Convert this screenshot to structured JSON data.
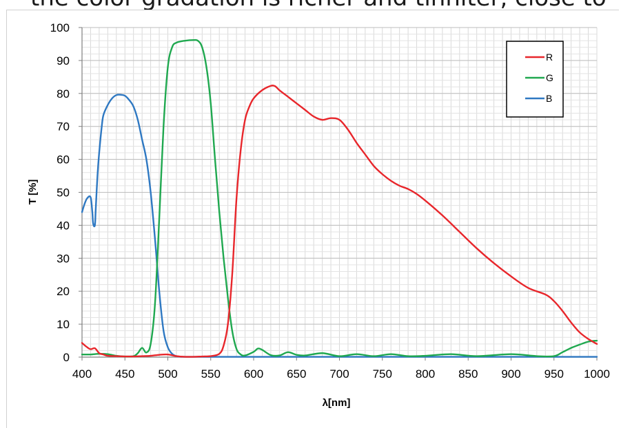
{
  "caption": "the color gradation is richer and tinniter, close to",
  "chart_data": {
    "type": "line",
    "title": "",
    "xlabel": "λ[nm]",
    "ylabel": "T [%]",
    "xlim": [
      400,
      1000
    ],
    "ylim": [
      0,
      100
    ],
    "x_ticks": [
      400,
      450,
      500,
      550,
      600,
      650,
      700,
      750,
      800,
      850,
      900,
      950,
      1000
    ],
    "y_ticks": [
      0,
      10,
      20,
      30,
      40,
      50,
      60,
      70,
      80,
      90,
      100
    ],
    "grid": true,
    "legend_position": "top-right",
    "series": [
      {
        "name": "R",
        "color": "#e8262b",
        "x": [
          400,
          405,
          410,
          415,
          420,
          425,
          430,
          440,
          450,
          460,
          470,
          480,
          490,
          500,
          510,
          520,
          530,
          540,
          550,
          560,
          565,
          570,
          575,
          580,
          585,
          590,
          595,
          600,
          610,
          620,
          625,
          630,
          640,
          650,
          660,
          670,
          680,
          690,
          700,
          710,
          720,
          730,
          740,
          750,
          760,
          770,
          780,
          790,
          800,
          820,
          840,
          860,
          880,
          900,
          920,
          940,
          950,
          960,
          970,
          980,
          990,
          1000
        ],
        "values": [
          4.3,
          3.2,
          2.4,
          2.7,
          1.2,
          0.8,
          0.4,
          0.3,
          0.2,
          0.2,
          0.3,
          0.4,
          0.7,
          0.8,
          0.3,
          0.1,
          0.1,
          0.2,
          0.3,
          1.0,
          3.5,
          10,
          25,
          48,
          63,
          72,
          76,
          78.5,
          81,
          82.3,
          82.2,
          81,
          79,
          77,
          75,
          73,
          72,
          72.5,
          72,
          69,
          65,
          61.5,
          58,
          55.5,
          53.5,
          52,
          51,
          49.5,
          47.5,
          43,
          38,
          33,
          28.5,
          24.5,
          21,
          19,
          17,
          14,
          10.5,
          7.5,
          5.5,
          4.0
        ]
      },
      {
        "name": "G",
        "color": "#1fa84f",
        "x": [
          400,
          410,
          420,
          430,
          440,
          450,
          460,
          465,
          470,
          475,
          480,
          485,
          490,
          495,
          500,
          505,
          510,
          520,
          530,
          535,
          540,
          545,
          550,
          555,
          560,
          565,
          570,
          575,
          580,
          585,
          590,
          600,
          605,
          610,
          620,
          630,
          640,
          650,
          660,
          680,
          700,
          720,
          740,
          760,
          780,
          800,
          830,
          860,
          900,
          930,
          950,
          960,
          970,
          980,
          990,
          1000
        ],
        "values": [
          0.8,
          0.8,
          1.0,
          0.9,
          0.4,
          0.2,
          0.3,
          1.2,
          2.8,
          1.4,
          4,
          16,
          42,
          70,
          88,
          94,
          95.4,
          96,
          96.2,
          96,
          94,
          88,
          77,
          60,
          44,
          30,
          18,
          8,
          2.5,
          0.8,
          0.5,
          1.6,
          2.6,
          2.2,
          0.6,
          0.5,
          1.5,
          0.7,
          0.5,
          1.2,
          0.3,
          0.9,
          0.3,
          0.9,
          0.3,
          0.4,
          0.9,
          0.3,
          0.9,
          0.3,
          0.3,
          1.5,
          2.8,
          3.8,
          4.7,
          5.0
        ]
      },
      {
        "name": "B",
        "color": "#2e78c2",
        "x": [
          400,
          403,
          406,
          410,
          412,
          413,
          415,
          416,
          418,
          420,
          423,
          425,
          430,
          435,
          440,
          445,
          450,
          455,
          460,
          465,
          470,
          475,
          480,
          485,
          490,
          495,
          500,
          505,
          510,
          515,
          520,
          530,
          550,
          600,
          700,
          800,
          900,
          1000
        ],
        "values": [
          44,
          46.5,
          48.2,
          48.5,
          44,
          40.5,
          40,
          45,
          55,
          62,
          70,
          73.5,
          76.5,
          78.5,
          79.5,
          79.6,
          79.3,
          78,
          76,
          72,
          66,
          60,
          50,
          36,
          20,
          8,
          3,
          1,
          0.3,
          0.1,
          0.1,
          0.1,
          0.1,
          0.1,
          0.1,
          0.1,
          0.1,
          0.1
        ]
      }
    ]
  }
}
